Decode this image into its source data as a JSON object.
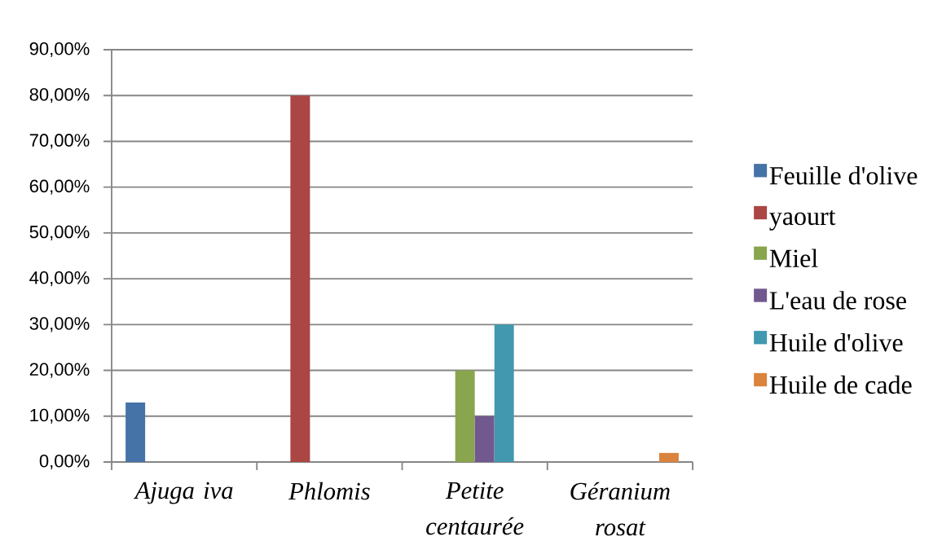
{
  "chart_data": {
    "type": "bar",
    "categories": [
      "Ajuga iva",
      "Phlomis",
      "Petite centaurée",
      "Géranium rosat"
    ],
    "series": [
      {
        "name": "Feuille d'olive",
        "color": "#4572a7",
        "values": [
          13,
          null,
          null,
          null
        ]
      },
      {
        "name": "yaourt",
        "color": "#aa4643",
        "values": [
          null,
          80,
          null,
          null
        ]
      },
      {
        "name": "Miel",
        "color": "#89a54e",
        "values": [
          null,
          null,
          20,
          null
        ]
      },
      {
        "name": "L'eau de rose",
        "color": "#71588f",
        "values": [
          null,
          null,
          10,
          null
        ]
      },
      {
        "name": "Huile d'olive",
        "color": "#4198af",
        "values": [
          null,
          null,
          30,
          null
        ]
      },
      {
        "name": "Huile de cade",
        "color": "#db843d",
        "values": [
          null,
          null,
          null,
          2
        ]
      }
    ],
    "ylim": [
      0,
      90
    ],
    "yticks": [
      {
        "value": 0,
        "label": "0,00%"
      },
      {
        "value": 10,
        "label": "10,00%"
      },
      {
        "value": 20,
        "label": "20,00%"
      },
      {
        "value": 30,
        "label": "30,00%"
      },
      {
        "value": 40,
        "label": "40,00%"
      },
      {
        "value": 50,
        "label": "50,00%"
      },
      {
        "value": 60,
        "label": "60,00%"
      },
      {
        "value": 70,
        "label": "70,00%"
      },
      {
        "value": 80,
        "label": "80,00%"
      },
      {
        "value": 90,
        "label": "90,00%"
      }
    ],
    "grid": "y",
    "legend": "right"
  }
}
